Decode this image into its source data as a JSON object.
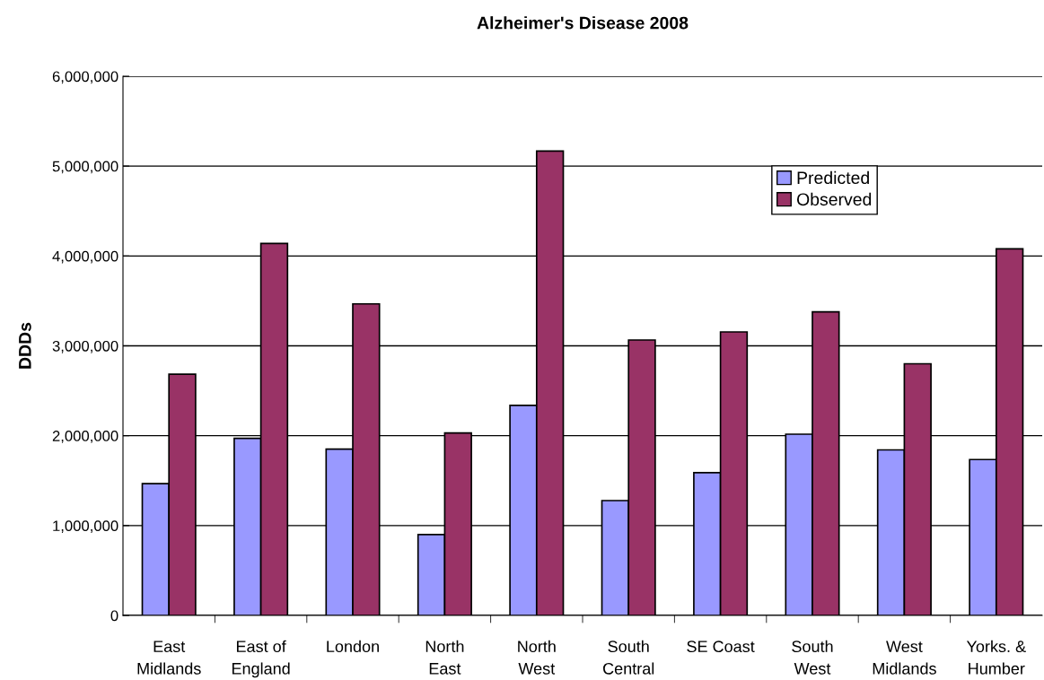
{
  "chart_data": {
    "type": "bar",
    "title": "Alzheimer's Disease 2008",
    "ylabel": "DDDs",
    "categories": [
      "East\nMidlands",
      "East of\nEngland",
      "London",
      "North\nEast",
      "North\nWest",
      "South\nCentral",
      "SE Coast",
      "South\nWest",
      "West\nMidlands",
      "Yorks. &\nHumber"
    ],
    "series": [
      {
        "name": "Predicted",
        "color": "#9999ff",
        "values": [
          1467000,
          1970000,
          1850000,
          900000,
          2337000,
          1278000,
          1588000,
          2017000,
          1842000,
          1735000
        ]
      },
      {
        "name": "Observed",
        "color": "#993366",
        "values": [
          2684000,
          4140000,
          3467000,
          2030000,
          5168000,
          3065000,
          3155000,
          3378000,
          2800000,
          4079000
        ]
      }
    ],
    "ylim": [
      0,
      6000000
    ],
    "yticks": [
      {
        "value": 0,
        "label": "0"
      },
      {
        "value": 1000000,
        "label": "1,000,000"
      },
      {
        "value": 2000000,
        "label": "2,000,000"
      },
      {
        "value": 3000000,
        "label": "3,000,000"
      },
      {
        "value": 4000000,
        "label": "4,000,000"
      },
      {
        "value": 5000000,
        "label": "5,000,000"
      },
      {
        "value": 6000000,
        "label": "6,000,000"
      }
    ],
    "grid": "y",
    "legend": "top right"
  }
}
